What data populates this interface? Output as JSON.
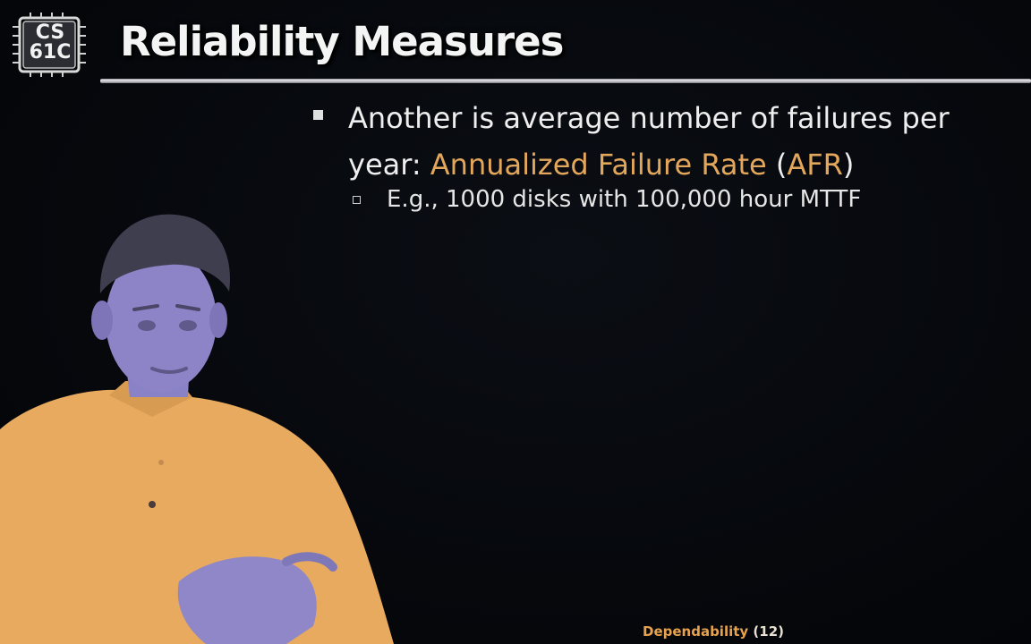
{
  "logo": {
    "line1": "CS",
    "line2": "61C"
  },
  "title": "Reliability Measures",
  "bullet": {
    "prefix": "Another is average number of failures per year: ",
    "term": "Annualized Failure Rate",
    "open_paren": " (",
    "acronym": "AFR",
    "close_paren": ")"
  },
  "sub_bullet": "E.g., 1000 disks with 100,000 hour MTTF",
  "footer": {
    "topic": "Dependability",
    "page": " (12)"
  },
  "colors": {
    "accent": "#e3a75c",
    "background": "#05060a",
    "shirt": "#e7aa5e",
    "skin": "#8a82c6"
  }
}
